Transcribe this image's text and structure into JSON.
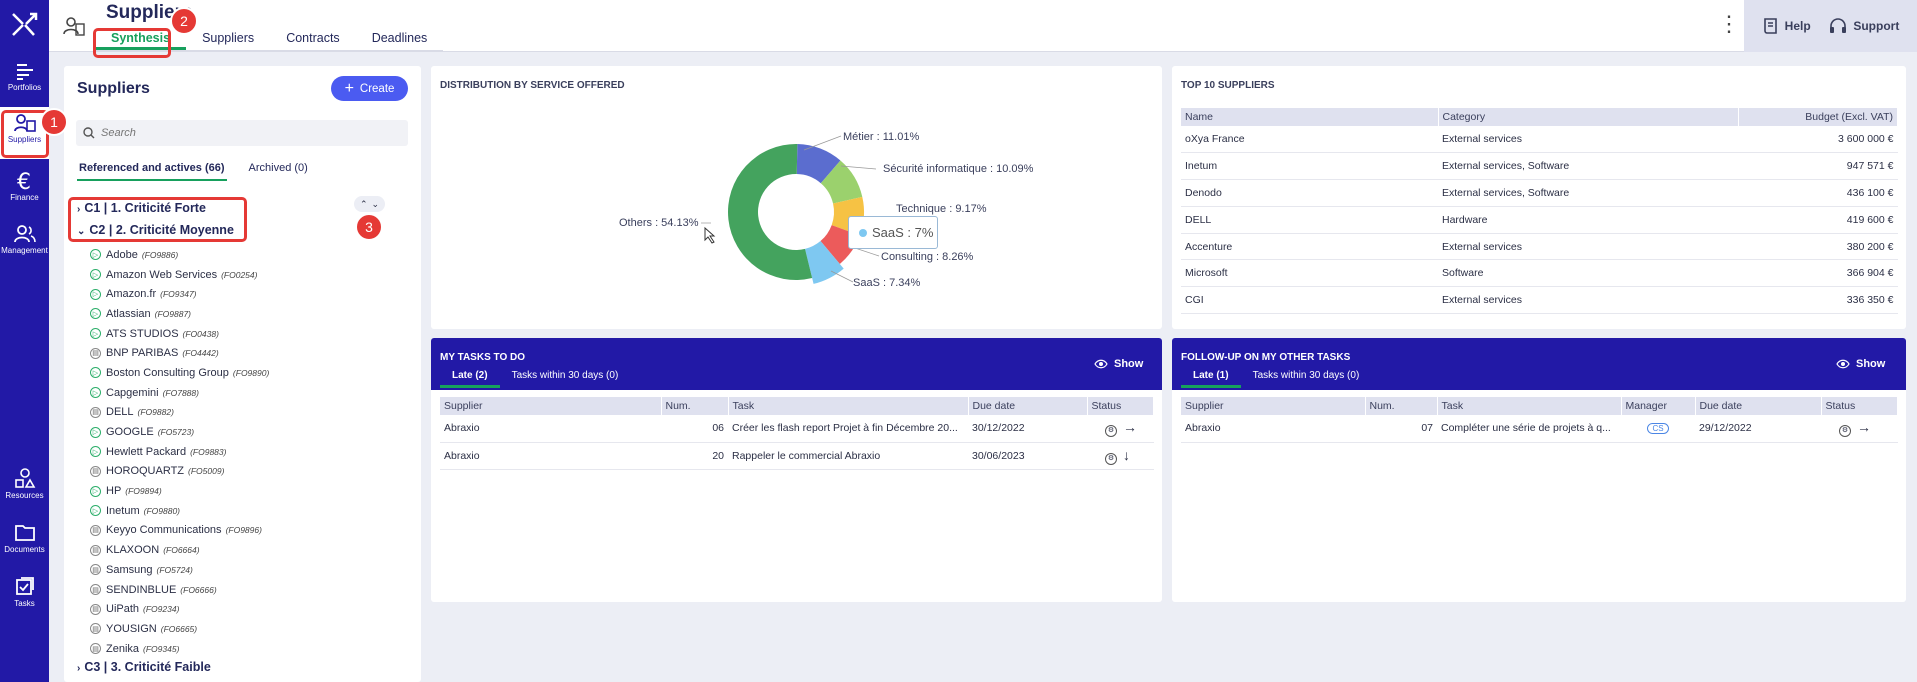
{
  "nav": {
    "items": [
      {
        "label": "Portfolios",
        "icon": "portfolio-icon"
      },
      {
        "label": "Suppliers",
        "icon": "suppliers-icon"
      },
      {
        "label": "Finance",
        "icon": "euro-icon"
      },
      {
        "label": "Management",
        "icon": "management-icon"
      },
      {
        "label": "Resources",
        "icon": "resources-icon"
      },
      {
        "label": "Documents",
        "icon": "folder-icon"
      },
      {
        "label": "Tasks",
        "icon": "tasks-icon"
      }
    ]
  },
  "header": {
    "title": "Suppliers",
    "tabs": [
      "Synthesis",
      "Suppliers",
      "Contracts",
      "Deadlines"
    ],
    "help_label": "Help",
    "support_label": "Support"
  },
  "suppliers_panel": {
    "title": "Suppliers",
    "create_label": "Create",
    "search_placeholder": "Search",
    "subtabs": [
      "Referenced and actives (66)",
      "Archived (0)"
    ],
    "groups": [
      "C1 | 1. Criticité Forte",
      "C2 | 2. Criticité Moyenne",
      "C3 | 3. Criticité Faible"
    ],
    "items": [
      {
        "name": "Adobe",
        "code": "(FO9886)",
        "status": "active"
      },
      {
        "name": "Amazon Web Services",
        "code": "(FO0254)",
        "status": "active"
      },
      {
        "name": "Amazon.fr",
        "code": "(FO9347)",
        "status": "active"
      },
      {
        "name": "Atlassian",
        "code": "(FO9887)",
        "status": "active"
      },
      {
        "name": "ATS STUDIOS",
        "code": "(FO0438)",
        "status": "active"
      },
      {
        "name": "BNP PARIBAS",
        "code": "(FO4442)",
        "status": "other"
      },
      {
        "name": "Boston Consulting Group",
        "code": "(FO9890)",
        "status": "active"
      },
      {
        "name": "Capgemini",
        "code": "(FO7888)",
        "status": "active"
      },
      {
        "name": "DELL",
        "code": "(FO9882)",
        "status": "other"
      },
      {
        "name": "GOOGLE",
        "code": "(FO5723)",
        "status": "active"
      },
      {
        "name": "Hewlett Packard",
        "code": "(FO9883)",
        "status": "active"
      },
      {
        "name": "HOROQUARTZ",
        "code": "(FO5009)",
        "status": "other"
      },
      {
        "name": "HP",
        "code": "(FO9894)",
        "status": "active"
      },
      {
        "name": "Inetum",
        "code": "(FO9880)",
        "status": "active"
      },
      {
        "name": "Keyyo Communications",
        "code": "(FO9896)",
        "status": "other"
      },
      {
        "name": "KLAXOON",
        "code": "(FO6664)",
        "status": "other"
      },
      {
        "name": "Samsung",
        "code": "(FO5724)",
        "status": "other"
      },
      {
        "name": "SENDINBLUE",
        "code": "(FO6666)",
        "status": "other"
      },
      {
        "name": "UiPath",
        "code": "(FO9234)",
        "status": "other"
      },
      {
        "name": "YOUSIGN",
        "code": "(FO6665)",
        "status": "other"
      },
      {
        "name": "Zenika",
        "code": "(FO9345)",
        "status": "other"
      }
    ]
  },
  "distribution": {
    "title": "DISTRIBUTION BY SERVICE OFFERED",
    "labels": [
      "Métier : 11.01%",
      "Sécurité informatique : 10.09%",
      "Technique : 9.17%",
      "Consulting : 8.26%",
      "SaaS : 7.34%",
      "Others : 54.13%"
    ],
    "tooltip": "SaaS : 7%"
  },
  "chart_data": {
    "type": "pie",
    "title": "DISTRIBUTION BY SERVICE OFFERED",
    "categories": [
      "Métier",
      "Sécurité informatique",
      "Technique",
      "Consulting",
      "SaaS",
      "Others"
    ],
    "values": [
      11.01,
      10.09,
      9.17,
      8.26,
      7.34,
      54.13
    ],
    "colors": [
      "#5b6dcf",
      "#9bd16d",
      "#f6c244",
      "#ec5b5b",
      "#7ec8f1",
      "#44a35e"
    ],
    "donut": true
  },
  "top10": {
    "title": "TOP 10 SUPPLIERS",
    "columns": [
      "Name",
      "Category",
      "Budget (Excl. VAT)"
    ],
    "rows": [
      [
        "oXya France",
        "External services",
        "3 600 000 €"
      ],
      [
        "Inetum",
        "External services, Software",
        "947 571 €"
      ],
      [
        "Denodo",
        "External services, Software",
        "436 100 €"
      ],
      [
        "DELL",
        "Hardware",
        "419 600 €"
      ],
      [
        "Accenture",
        "External services",
        "380 200 €"
      ],
      [
        "Microsoft",
        "Software",
        "366 904 €"
      ],
      [
        "CGI",
        "External services",
        "336 350 €"
      ]
    ]
  },
  "my_tasks": {
    "title": "MY TASKS TO DO",
    "tabs": [
      "Late (2)",
      "Tasks within 30 days (0)"
    ],
    "show_label": "Show",
    "columns": [
      "Supplier",
      "Num.",
      "Task",
      "Due date",
      "Status"
    ],
    "rows": [
      [
        "Abraxio",
        "06",
        "Créer les flash report Projet à fin Décembre 20...",
        "30/12/2022"
      ],
      [
        "Abraxio",
        "20",
        "Rappeler le commercial Abraxio",
        "30/06/2023"
      ]
    ]
  },
  "other_tasks": {
    "title": "FOLLOW-UP ON MY OTHER TASKS",
    "tabs": [
      "Late (1)",
      "Tasks within 30 days (0)"
    ],
    "show_label": "Show",
    "columns": [
      "Supplier",
      "Num.",
      "Task",
      "Manager",
      "Due date",
      "Status"
    ],
    "rows": [
      [
        "Abraxio",
        "07",
        "Compléter une série de projets à q...",
        "CS",
        "29/12/2022"
      ]
    ]
  },
  "annotations": [
    "1",
    "2",
    "3"
  ],
  "colors": {
    "nav": "#2219a6",
    "accent": "#17a05d",
    "button": "#4b5bf1",
    "annotation": "#e53935"
  }
}
